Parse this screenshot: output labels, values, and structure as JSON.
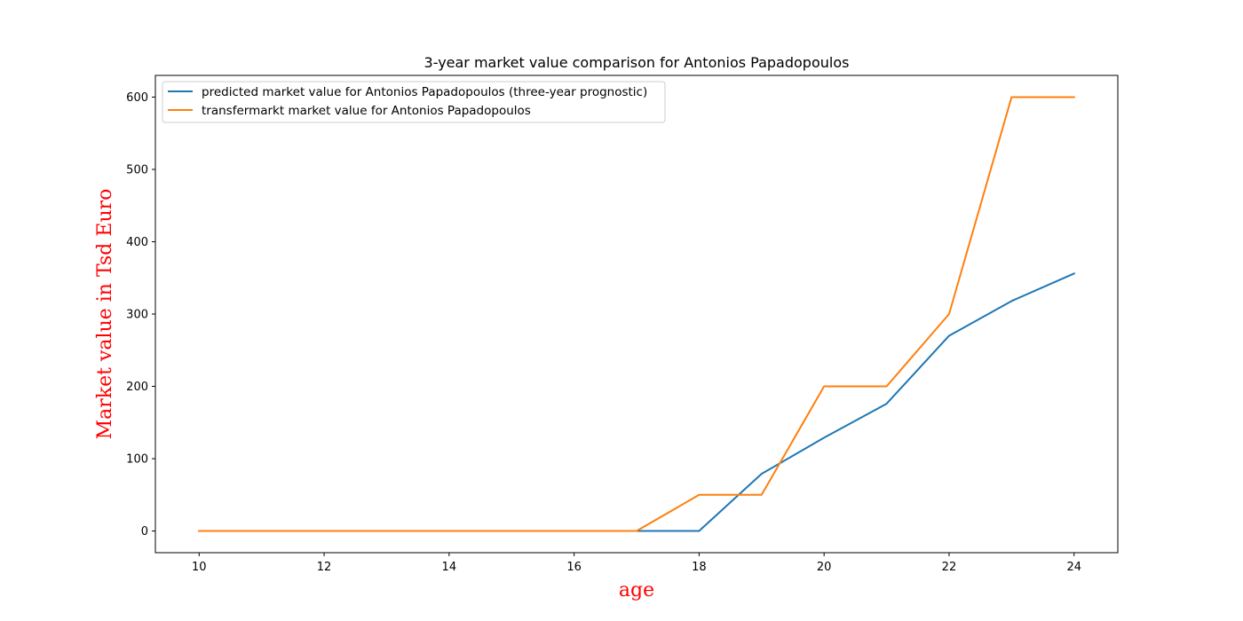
{
  "chart_data": {
    "type": "line",
    "title": "3-year market value comparison for Antonios Papadopoulos",
    "xlabel": "age",
    "ylabel": "Market value in Tsd Euro",
    "axis_label_color": "#ff0000",
    "xlim": [
      9.3,
      24.7
    ],
    "ylim": [
      -30,
      630
    ],
    "xticks": [
      10,
      12,
      14,
      16,
      18,
      20,
      22,
      24
    ],
    "yticks": [
      0,
      100,
      200,
      300,
      400,
      500,
      600
    ],
    "grid": false,
    "legend_position": "top-left",
    "series": [
      {
        "name": "predicted market value for Antonios Papadopoulos (three-year prognostic)",
        "color": "#1f77b4",
        "x": [
          10,
          11,
          12,
          13,
          14,
          15,
          16,
          17,
          18,
          19,
          20,
          21,
          22,
          23,
          24
        ],
        "y": [
          0,
          0,
          0,
          0,
          0,
          0,
          0,
          0,
          0,
          79,
          129,
          176,
          270,
          318,
          356
        ]
      },
      {
        "name": "transfermarkt market value for Antonios Papadopoulos",
        "color": "#ff7f0e",
        "x": [
          10,
          11,
          12,
          13,
          14,
          15,
          16,
          17,
          18,
          19,
          20,
          21,
          22,
          23,
          24
        ],
        "y": [
          0,
          0,
          0,
          0,
          0,
          0,
          0,
          0,
          50,
          50,
          200,
          200,
          300,
          600,
          600
        ]
      }
    ]
  }
}
